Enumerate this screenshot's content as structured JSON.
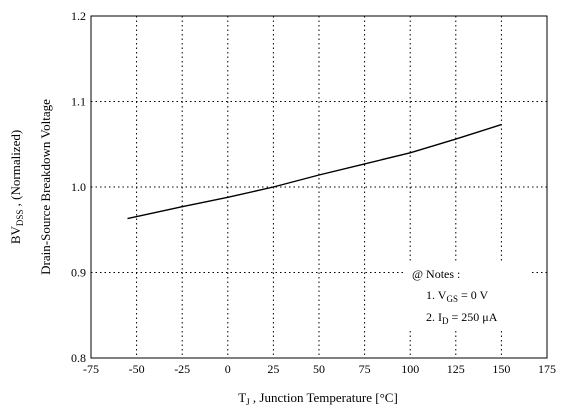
{
  "chart_data": {
    "type": "line",
    "xlabel": {
      "main": "T",
      "sub": "J",
      "rest": " , Junction Temperature  [",
      "unit": "°C",
      "end": "]"
    },
    "ylabel": {
      "line1_pre": "BV",
      "line1_sub": "DSS",
      "line1_post": " ,  (Normalized)",
      "line2": "Drain-Source Breakdown Voltage"
    },
    "xlim": [
      -75,
      175
    ],
    "ylim": [
      0.8,
      1.2
    ],
    "xticks": [
      -75,
      -50,
      -25,
      0,
      25,
      50,
      75,
      100,
      125,
      150,
      175
    ],
    "yticks": [
      0.8,
      0.9,
      1.0,
      1.1,
      1.2
    ],
    "ytick_labels": [
      "0.8",
      "0.9",
      "1.0",
      "1.1",
      "1.2"
    ],
    "grid": true,
    "series": [
      {
        "x": [
          -55,
          -25,
          0,
          25,
          50,
          75,
          100,
          125,
          150
        ],
        "y": [
          0.963,
          0.977,
          0.988,
          1.0,
          1.014,
          1.027,
          1.04,
          1.056,
          1.073
        ]
      }
    ],
    "notes": {
      "title": "@ Notes :",
      "n1_pre": "1. V",
      "n1_sub": "GS",
      "n1_post": " = 0 V",
      "n2_pre": "2. I",
      "n2_sub": "D",
      "n2_post": " = 250 μA"
    }
  }
}
